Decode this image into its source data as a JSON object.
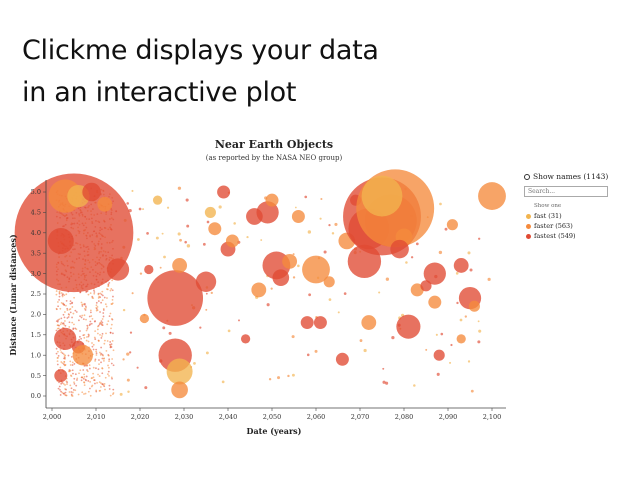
{
  "headline": {
    "line1": "Clickme displays your data",
    "line2": "in an interactive plot"
  },
  "controls": {
    "show_names_label": "Show names (1143)",
    "search_placeholder": "Search...",
    "show_one_label": "Show one"
  },
  "legend": [
    {
      "label": "fast (31)",
      "color": "#f2b44e"
    },
    {
      "label": "faster (563)",
      "color": "#f58a3c"
    },
    {
      "label": "fastest (549)",
      "color": "#e04a33"
    }
  ],
  "chart_data": {
    "type": "scatter",
    "title": "Near Earth Objects",
    "subtitle": "(as reported by the NASA NEO group)",
    "xlabel": "Date (years)",
    "ylabel": "Distance (Lunar distances)",
    "xlim": [
      1998,
      2102
    ],
    "ylim": [
      -0.2,
      5.2
    ],
    "x_ticks": [
      "2,000",
      "2,010",
      "2,020",
      "2,030",
      "2,040",
      "2,050",
      "2,060",
      "2,070",
      "2,080",
      "2,090",
      "2,100"
    ],
    "y_ticks": [
      "0.0",
      "0.5",
      "1.0",
      "1.5",
      "2.0",
      "2.5",
      "3.0",
      "3.5",
      "4.0",
      "4.5",
      "5.0"
    ],
    "points": [
      {
        "x": 2005,
        "y": 4.0,
        "size": 3.2,
        "group": "fastest"
      },
      {
        "x": 2002,
        "y": 3.8,
        "size": 0.7,
        "group": "fastest"
      },
      {
        "x": 2003,
        "y": 4.9,
        "size": 0.9,
        "group": "faster"
      },
      {
        "x": 2006,
        "y": 4.9,
        "size": 0.6,
        "group": "fast"
      },
      {
        "x": 2009,
        "y": 5.0,
        "size": 0.5,
        "group": "fastest"
      },
      {
        "x": 2012,
        "y": 4.7,
        "size": 0.4,
        "group": "faster"
      },
      {
        "x": 2003,
        "y": 1.4,
        "size": 0.6,
        "group": "fastest"
      },
      {
        "x": 2006,
        "y": 1.2,
        "size": 0.35,
        "group": "fastest"
      },
      {
        "x": 2007,
        "y": 1.0,
        "size": 0.55,
        "group": "faster"
      },
      {
        "x": 2002,
        "y": 0.5,
        "size": 0.35,
        "group": "fastest"
      },
      {
        "x": 2015,
        "y": 3.1,
        "size": 0.6,
        "group": "fastest"
      },
      {
        "x": 2028,
        "y": 2.4,
        "size": 1.5,
        "group": "fastest"
      },
      {
        "x": 2028,
        "y": 1.0,
        "size": 0.9,
        "group": "fastest"
      },
      {
        "x": 2029,
        "y": 0.6,
        "size": 0.7,
        "group": "fast"
      },
      {
        "x": 2029,
        "y": 0.15,
        "size": 0.45,
        "group": "faster"
      },
      {
        "x": 2029,
        "y": 3.2,
        "size": 0.4,
        "group": "faster"
      },
      {
        "x": 2035,
        "y": 2.8,
        "size": 0.55,
        "group": "fastest"
      },
      {
        "x": 2036,
        "y": 4.5,
        "size": 0.3,
        "group": "fast"
      },
      {
        "x": 2037,
        "y": 4.1,
        "size": 0.35,
        "group": "faster"
      },
      {
        "x": 2039,
        "y": 5.0,
        "size": 0.35,
        "group": "fastest"
      },
      {
        "x": 2040,
        "y": 3.6,
        "size": 0.4,
        "group": "fastest"
      },
      {
        "x": 2041,
        "y": 3.8,
        "size": 0.35,
        "group": "faster"
      },
      {
        "x": 2046,
        "y": 4.4,
        "size": 0.45,
        "group": "fastest"
      },
      {
        "x": 2047,
        "y": 2.6,
        "size": 0.4,
        "group": "faster"
      },
      {
        "x": 2049,
        "y": 4.5,
        "size": 0.6,
        "group": "fastest"
      },
      {
        "x": 2050,
        "y": 4.8,
        "size": 0.35,
        "group": "faster"
      },
      {
        "x": 2051,
        "y": 3.2,
        "size": 0.75,
        "group": "fastest"
      },
      {
        "x": 2052,
        "y": 2.9,
        "size": 0.45,
        "group": "fastest"
      },
      {
        "x": 2054,
        "y": 3.3,
        "size": 0.4,
        "group": "faster"
      },
      {
        "x": 2056,
        "y": 4.4,
        "size": 0.35,
        "group": "faster"
      },
      {
        "x": 2058,
        "y": 1.8,
        "size": 0.35,
        "group": "fastest"
      },
      {
        "x": 2060,
        "y": 3.1,
        "size": 0.75,
        "group": "faster"
      },
      {
        "x": 2061,
        "y": 1.8,
        "size": 0.35,
        "group": "fastest"
      },
      {
        "x": 2063,
        "y": 2.8,
        "size": 0.3,
        "group": "faster"
      },
      {
        "x": 2066,
        "y": 0.9,
        "size": 0.35,
        "group": "fastest"
      },
      {
        "x": 2067,
        "y": 3.8,
        "size": 0.45,
        "group": "faster"
      },
      {
        "x": 2069,
        "y": 4.8,
        "size": 0.3,
        "group": "fastest"
      },
      {
        "x": 2071,
        "y": 3.3,
        "size": 0.9,
        "group": "fastest"
      },
      {
        "x": 2072,
        "y": 4.1,
        "size": 1.1,
        "group": "fastest"
      },
      {
        "x": 2072,
        "y": 1.8,
        "size": 0.4,
        "group": "faster"
      },
      {
        "x": 2075,
        "y": 4.4,
        "size": 2.1,
        "group": "fastest"
      },
      {
        "x": 2077,
        "y": 4.3,
        "size": 1.4,
        "group": "fastest"
      },
      {
        "x": 2078,
        "y": 4.6,
        "size": 2.1,
        "group": "faster"
      },
      {
        "x": 2075,
        "y": 4.9,
        "size": 1.1,
        "group": "fast"
      },
      {
        "x": 2080,
        "y": 3.9,
        "size": 0.45,
        "group": "faster"
      },
      {
        "x": 2079,
        "y": 3.6,
        "size": 0.5,
        "group": "fastest"
      },
      {
        "x": 2081,
        "y": 1.7,
        "size": 0.65,
        "group": "fastest"
      },
      {
        "x": 2083,
        "y": 2.6,
        "size": 0.35,
        "group": "faster"
      },
      {
        "x": 2085,
        "y": 2.7,
        "size": 0.3,
        "group": "fastest"
      },
      {
        "x": 2087,
        "y": 3.0,
        "size": 0.6,
        "group": "fastest"
      },
      {
        "x": 2087,
        "y": 2.3,
        "size": 0.35,
        "group": "faster"
      },
      {
        "x": 2088,
        "y": 1.0,
        "size": 0.3,
        "group": "fastest"
      },
      {
        "x": 2091,
        "y": 4.2,
        "size": 0.3,
        "group": "faster"
      },
      {
        "x": 2093,
        "y": 3.2,
        "size": 0.4,
        "group": "fastest"
      },
      {
        "x": 2095,
        "y": 2.4,
        "size": 0.6,
        "group": "fastest"
      },
      {
        "x": 2096,
        "y": 2.2,
        "size": 0.3,
        "group": "faster"
      },
      {
        "x": 2100,
        "y": 4.9,
        "size": 0.75,
        "group": "faster"
      },
      {
        "x": 2093,
        "y": 1.4,
        "size": 0.25,
        "group": "faster"
      },
      {
        "x": 2024,
        "y": 4.8,
        "size": 0.25,
        "group": "fast"
      },
      {
        "x": 2022,
        "y": 3.1,
        "size": 0.25,
        "group": "fastest"
      },
      {
        "x": 2021,
        "y": 1.9,
        "size": 0.25,
        "group": "faster"
      },
      {
        "x": 2044,
        "y": 1.4,
        "size": 0.25,
        "group": "fastest"
      }
    ]
  }
}
